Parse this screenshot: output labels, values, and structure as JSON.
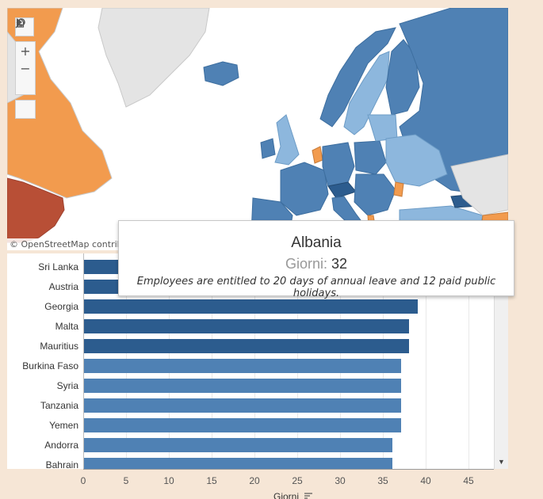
{
  "map": {
    "attribution": "© OpenStreetMap contributors",
    "toolbar": {
      "search_icon": "search-icon",
      "zoom_in": "+",
      "zoom_out": "−",
      "home_icon": "home-icon",
      "expand_icon": "play-icon"
    }
  },
  "tooltip": {
    "country": "Albania",
    "label": "Giorni:",
    "value": "32",
    "note": "Employees are entitled to 20 days of annual leave and 12 paid public holidays."
  },
  "colors": {
    "dark_blue": "#2c5c8e",
    "mid_blue": "#4f81b4",
    "light_blue": "#8db7dd",
    "orange": "#f29b4e",
    "red_orange": "#b84f36",
    "grey": "#dcdcdc"
  },
  "chart_data": {
    "type": "bar",
    "orientation": "horizontal",
    "categories": [
      "Sri Lanka",
      "Austria",
      "Georgia",
      "Malta",
      "Mauritius",
      "Burkina Faso",
      "Syria",
      "Tanzania",
      "Yemen",
      "Andorra",
      "Bahrain"
    ],
    "values": [
      39,
      39,
      39,
      38,
      38,
      37,
      37,
      37,
      37,
      36,
      36
    ],
    "xlabel": "Giorni",
    "xticks": [
      0,
      5,
      10,
      15,
      20,
      25,
      30,
      35,
      40,
      45
    ],
    "xlim": [
      0,
      48
    ]
  }
}
